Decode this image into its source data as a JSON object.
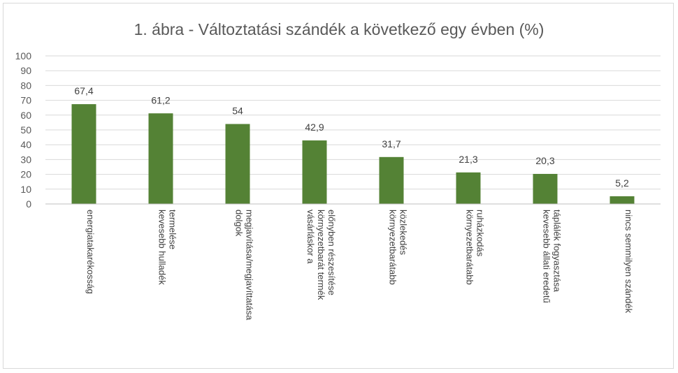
{
  "chart_data": {
    "type": "bar",
    "title": "1. ábra - Változtatási szándék a következő egy évben (%)",
    "xlabel": "",
    "ylabel": "",
    "ylim": [
      0,
      100
    ],
    "yticks": [
      "0",
      "10",
      "20",
      "30",
      "40",
      "50",
      "60",
      "70",
      "80",
      "90",
      "100"
    ],
    "grid": true,
    "legend": "none",
    "bar_color": "#548235",
    "categories": [
      [
        "energiatakarékosság"
      ],
      [
        "kevesebb hulladék",
        "termelése"
      ],
      [
        "dolgok",
        "megjavítása/megjavíttatása"
      ],
      [
        "vásárláskor a",
        "környezetbarát termék",
        "előnyben részesítése"
      ],
      [
        "környezetbarátabb",
        "közlekedés"
      ],
      [
        "környezetbarátabb",
        "ruházkodás"
      ],
      [
        "kevesebb állati eredetű",
        "táplálék fogyasztása"
      ],
      [
        "nincs semmilyen szándék"
      ]
    ],
    "values": [
      67.4,
      61.2,
      54,
      42.9,
      31.7,
      21.3,
      20.3,
      5.2
    ],
    "data_labels": [
      "67,4",
      "61,2",
      "54",
      "42,9",
      "31,7",
      "21,3",
      "20,3",
      "5,2"
    ]
  }
}
